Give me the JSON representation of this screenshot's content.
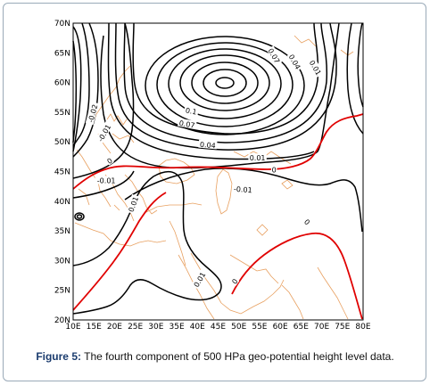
{
  "figure": {
    "label": "Figure 5:",
    "caption": "The fourth component of 500 HPa geo-potential height level data."
  },
  "map": {
    "lat_ticks": [
      "70N",
      "65N",
      "60N",
      "55N",
      "50N",
      "45N",
      "40N",
      "35N",
      "30N",
      "25N",
      "20N"
    ],
    "lon_ticks": [
      "10E",
      "15E",
      "20E",
      "25E",
      "30E",
      "35E",
      "40E",
      "45E",
      "50E",
      "55E",
      "60E",
      "65E",
      "70E",
      "75E",
      "80E"
    ],
    "extent": {
      "lon": [
        10,
        80
      ],
      "lat": [
        20,
        70
      ]
    },
    "colors": {
      "contour": "#000000",
      "zero_line": "#e00000",
      "coastline": "#e8a060"
    },
    "contour_labels": [
      {
        "text": "0.07",
        "lon": 58.5,
        "lat": 64.5,
        "rot": 60
      },
      {
        "text": "0.04",
        "lon": 63.5,
        "lat": 63.5,
        "rot": 60
      },
      {
        "text": "0.01",
        "lon": 68.5,
        "lat": 62.5,
        "rot": 60
      },
      {
        "text": "0.1",
        "lon": 38.5,
        "lat": 55.2,
        "rot": 10
      },
      {
        "text": "0.07",
        "lon": 37.5,
        "lat": 53.0,
        "rot": 10
      },
      {
        "text": "0.04",
        "lon": 42.5,
        "lat": 49.5,
        "rot": 5
      },
      {
        "text": "0.01",
        "lon": 54.5,
        "lat": 47.3,
        "rot": 0
      },
      {
        "text": "0",
        "lon": 58.5,
        "lat": 45.3,
        "rot": 0
      },
      {
        "text": "-0.01",
        "lon": 51.0,
        "lat": 42.0,
        "rot": 5
      },
      {
        "text": "-0.02",
        "lon": 14.7,
        "lat": 54.8,
        "rot": -75
      },
      {
        "text": "-0.01",
        "lon": 17.5,
        "lat": 51.5,
        "rot": -60
      },
      {
        "text": "0",
        "lon": 18.8,
        "lat": 46.8,
        "rot": -35
      },
      {
        "text": "-0.01",
        "lon": 18.0,
        "lat": 43.5,
        "rot": 0
      },
      {
        "text": "0.01",
        "lon": 24.5,
        "lat": 39.5,
        "rot": -70
      },
      {
        "text": "0.01",
        "lon": 40.5,
        "lat": 26.8,
        "rot": -60
      },
      {
        "text": "0",
        "lon": 49.0,
        "lat": 26.5,
        "rot": -55
      },
      {
        "text": "0",
        "lon": 66.5,
        "lat": 36.5,
        "rot": 45
      }
    ]
  }
}
